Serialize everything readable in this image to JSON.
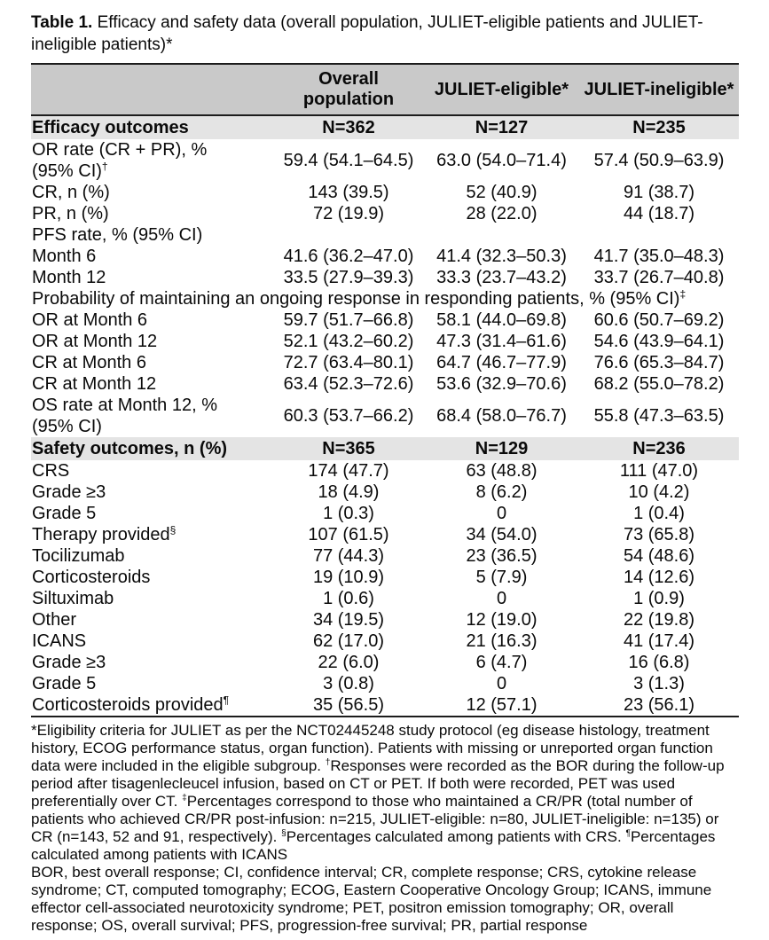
{
  "title": {
    "label": "Table 1.",
    "text": " Efficacy and safety data (overall population, JULIET-eligible patients and JULIET-\nineligible patients)*"
  },
  "table": {
    "columns": [
      "",
      "Overall population",
      "JULIET-eligible*",
      "JULIET-ineligible*"
    ],
    "rows": [
      {
        "type": "section",
        "label": "Efficacy outcomes",
        "values": [
          "N=362",
          "N=127",
          "N=235"
        ]
      },
      {
        "type": "data",
        "indent": 0,
        "label": "OR rate (CR + PR), %\n(95% CI)",
        "sup": "†",
        "values": [
          "59.4 (54.1–64.5)",
          "63.0 (54.0–71.4)",
          "57.4 (50.9–63.9)"
        ]
      },
      {
        "type": "data",
        "indent": 1,
        "label": "CR, n (%)",
        "values": [
          "143 (39.5)",
          "52 (40.9)",
          "91 (38.7)"
        ]
      },
      {
        "type": "data",
        "indent": 1,
        "label": "PR, n (%)",
        "values": [
          "72 (19.9)",
          "28 (22.0)",
          "44 (18.7)"
        ]
      },
      {
        "type": "data",
        "indent": 0,
        "label": "PFS rate, % (95% CI)",
        "values": [
          "",
          "",
          ""
        ]
      },
      {
        "type": "data",
        "indent": 1,
        "label": "Month 6",
        "values": [
          "41.6 (36.2–47.0)",
          "41.4 (32.3–50.3)",
          "41.7 (35.0–48.3)"
        ]
      },
      {
        "type": "data",
        "indent": 1,
        "label": "Month 12",
        "values": [
          "33.5 (27.9–39.3)",
          "33.3 (23.7–43.2)",
          "33.7 (26.7–40.8)"
        ]
      },
      {
        "type": "span",
        "label": "Probability of maintaining an ongoing response in responding patients, % (95% CI)",
        "sup": "‡"
      },
      {
        "type": "data",
        "indent": 1,
        "label": "OR at Month 6",
        "values": [
          "59.7 (51.7–66.8)",
          "58.1 (44.0–69.8)",
          "60.6 (50.7–69.2)"
        ]
      },
      {
        "type": "data",
        "indent": 1,
        "label": "OR at Month 12",
        "values": [
          "52.1 (43.2–60.2)",
          "47.3 (31.4–61.6)",
          "54.6 (43.9–64.1)"
        ]
      },
      {
        "type": "data",
        "indent": 1,
        "label": "CR at Month 6",
        "values": [
          "72.7 (63.4–80.1)",
          "64.7 (46.7–77.9)",
          "76.6 (65.3–84.7)"
        ]
      },
      {
        "type": "data",
        "indent": 1,
        "label": "CR at Month 12",
        "values": [
          "63.4 (52.3–72.6)",
          "53.6 (32.9–70.6)",
          "68.2 (55.0–78.2)"
        ]
      },
      {
        "type": "data",
        "indent": 0,
        "label": "OS rate at Month 12, %\n(95% CI)",
        "values": [
          "60.3 (53.7–66.2)",
          "68.4 (58.0–76.7)",
          "55.8 (47.3–63.5)"
        ]
      },
      {
        "type": "section",
        "label": "Safety outcomes, n (%)",
        "values": [
          "N=365",
          "N=129",
          "N=236"
        ]
      },
      {
        "type": "data",
        "indent": 0,
        "label": "CRS",
        "values": [
          "174 (47.7)",
          "63 (48.8)",
          "111 (47.0)"
        ]
      },
      {
        "type": "data",
        "indent": 1,
        "label": "Grade ≥3",
        "values": [
          "18 (4.9)",
          "8 (6.2)",
          "10 (4.2)"
        ]
      },
      {
        "type": "data",
        "indent": 1,
        "label": "Grade 5",
        "values": [
          "1 (0.3)",
          "0",
          "1 (0.4)"
        ]
      },
      {
        "type": "data",
        "indent": 1,
        "label": "Therapy provided",
        "sup": "§",
        "values": [
          "107 (61.5)",
          "34 (54.0)",
          "73 (65.8)"
        ]
      },
      {
        "type": "data",
        "indent": 2,
        "label": "Tocilizumab",
        "values": [
          "77 (44.3)",
          "23 (36.5)",
          "54 (48.6)"
        ]
      },
      {
        "type": "data",
        "indent": 2,
        "label": "Corticosteroids",
        "values": [
          "19 (10.9)",
          "5 (7.9)",
          "14 (12.6)"
        ]
      },
      {
        "type": "data",
        "indent": 2,
        "label": "Siltuximab",
        "values": [
          "1 (0.6)",
          "0",
          "1 (0.9)"
        ]
      },
      {
        "type": "data",
        "indent": 2,
        "label": "Other",
        "values": [
          "34 (19.5)",
          "12 (19.0)",
          "22 (19.8)"
        ]
      },
      {
        "type": "data",
        "indent": 0,
        "label": "ICANS",
        "values": [
          "62 (17.0)",
          "21 (16.3)",
          "41 (17.4)"
        ]
      },
      {
        "type": "data",
        "indent": 1,
        "label": "Grade ≥3",
        "values": [
          "22 (6.0)",
          "6 (4.7)",
          "16 (6.8)"
        ]
      },
      {
        "type": "data",
        "indent": 1,
        "label": "Grade 5",
        "values": [
          "3 (0.8)",
          "0",
          "3 (1.3)"
        ]
      },
      {
        "type": "data",
        "indent": 1,
        "label": "Corticosteroids provided",
        "sup": "¶",
        "values": [
          "35 (56.5)",
          "12 (57.1)",
          "23 (56.1)"
        ]
      }
    ]
  },
  "footnotes": {
    "segments": [
      {
        "text": "*Eligibility criteria for JULIET as per the NCT02445248 study protocol (eg disease histology, treatment history, ECOG performance status, organ function). Patients with missing or unreported organ function data were included in the eligible subgroup. "
      },
      {
        "sup": "†"
      },
      {
        "text": "Responses were recorded as the BOR during the follow-up period after tisagenlecleucel infusion, based on CT or PET. If both were recorded, PET was used preferentially over CT. "
      },
      {
        "sup": "‡"
      },
      {
        "text": "Percentages correspond to those who maintained a CR/PR (total number of patients who achieved CR/PR post-infusion: n=215, JULIET-eligible: n=80, JULIET-ineligible: n=135) or CR (n=143, 52 and 91, respectively). "
      },
      {
        "sup": "§"
      },
      {
        "text": "Percentages calculated among patients with CRS. "
      },
      {
        "sup": "¶"
      },
      {
        "text": "Percentages calculated among patients with ICANS"
      }
    ]
  },
  "abbreviations": "BOR, best overall response; CI, confidence interval; CR, complete response; CRS, cytokine release syndrome; CT, computed tomography; ECOG, Eastern Cooperative Oncology Group; ICANS, immune effector cell-associated neurotoxicity syndrome; PET, positron emission tomography; OR, overall response; OS, overall survival; PFS, progression-free survival; PR, partial response"
}
